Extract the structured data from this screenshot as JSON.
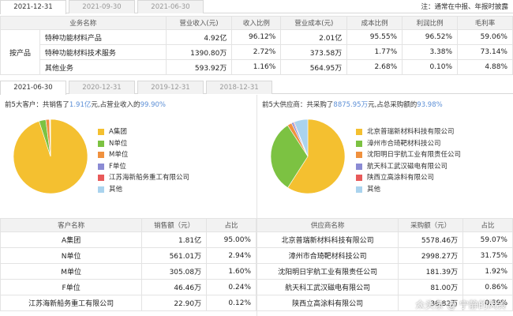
{
  "top_tabs": [
    "2021-12-31",
    "2021-09-30",
    "2021-06-30"
  ],
  "note": "注：通常在中报、年报时披露",
  "business": {
    "headers": [
      "业务名称",
      "营业收入(元)",
      "收入比例",
      "营业成本(元)",
      "成本比例",
      "利润比例",
      "毛利率"
    ],
    "category": "按产品",
    "rows": [
      [
        "特种功能材料产品",
        "4.92亿",
        "96.12%",
        "2.01亿",
        "95.55%",
        "96.52%",
        "59.06%"
      ],
      [
        "特种功能材料技术服务",
        "1390.80万",
        "2.72%",
        "373.58万",
        "1.77%",
        "3.38%",
        "73.14%"
      ],
      [
        "其他业务",
        "593.92万",
        "1.16%",
        "564.95万",
        "2.68%",
        "0.10%",
        "4.88%"
      ]
    ]
  },
  "period_tabs": [
    "2021-06-30",
    "2020-12-31",
    "2019-12-31",
    "2018-12-31"
  ],
  "customers": {
    "summary": {
      "prefix": "前5大客户：共销售了",
      "amount": "1.91亿",
      "middle": "元,占营业收入的",
      "pct": "99.90%"
    },
    "legend": [
      {
        "label": "A集团",
        "color": "#f4c030"
      },
      {
        "label": "N单位",
        "color": "#7cc242"
      },
      {
        "label": "M单位",
        "color": "#f0913e"
      },
      {
        "label": "F单位",
        "color": "#8b8bd4"
      },
      {
        "label": "江苏海新船务重工有限公司",
        "color": "#e85a5a"
      },
      {
        "label": "其他",
        "color": "#aad3ee"
      }
    ],
    "headers": [
      "客户名称",
      "销售额（元）",
      "占比"
    ],
    "rows": [
      [
        "A集团",
        "1.81亿",
        "95.00%"
      ],
      [
        "N单位",
        "561.01万",
        "2.94%"
      ],
      [
        "M单位",
        "305.08万",
        "1.60%"
      ],
      [
        "F单位",
        "46.46万",
        "0.24%"
      ],
      [
        "江苏海新船务重工有限公司",
        "22.90万",
        "0.12%"
      ]
    ],
    "chart_data": {
      "type": "pie",
      "labels": [
        "A集团",
        "N单位",
        "M单位",
        "F单位",
        "江苏海新船务重工有限公司",
        "其他"
      ],
      "values": [
        95.0,
        2.94,
        1.6,
        0.24,
        0.12,
        0.1
      ]
    }
  },
  "suppliers": {
    "summary": {
      "prefix": "前5大供应商：共采购了",
      "amount": "8875.95万",
      "middle": "元,占总采购额的",
      "pct": "93.98%"
    },
    "legend": [
      {
        "label": "北京普瑞新材料科技有限公司",
        "color": "#f4c030"
      },
      {
        "label": "漳州市合琦靶材科技公司",
        "color": "#7cc242"
      },
      {
        "label": "沈阳明日宇航工业有限责任公司",
        "color": "#f0913e"
      },
      {
        "label": "航天科工武汉磁电有限公司",
        "color": "#8b8bd4"
      },
      {
        "label": "陕西立高涂料有限公司",
        "color": "#e85a5a"
      },
      {
        "label": "其他",
        "color": "#aad3ee"
      }
    ],
    "headers": [
      "供应商名称",
      "采购额（元）",
      "占比"
    ],
    "rows": [
      [
        "北京普瑞新材料科技有限公司",
        "5578.46万",
        "59.07%"
      ],
      [
        "漳州市合琦靶材科技公司",
        "2998.27万",
        "31.75%"
      ],
      [
        "沈阳明日宇航工业有限责任公司",
        "181.39万",
        "1.92%"
      ],
      [
        "航天科工武汉磁电有限公司",
        "81.00万",
        "0.86%"
      ],
      [
        "陕西立高涂料有限公司",
        "36.82万",
        "0.39%"
      ]
    ],
    "chart_data": {
      "type": "pie",
      "labels": [
        "北京普瑞新材料科技有限公司",
        "漳州市合琦靶材科技公司",
        "沈阳明日宇航工业有限责任公司",
        "航天科工武汉磁电有限公司",
        "陕西立高涂料有限公司",
        "其他"
      ],
      "values": [
        59.07,
        31.75,
        1.92,
        0.86,
        0.39,
        6.01
      ]
    }
  },
  "watermark": "众头条 @ 宁静的风铃"
}
